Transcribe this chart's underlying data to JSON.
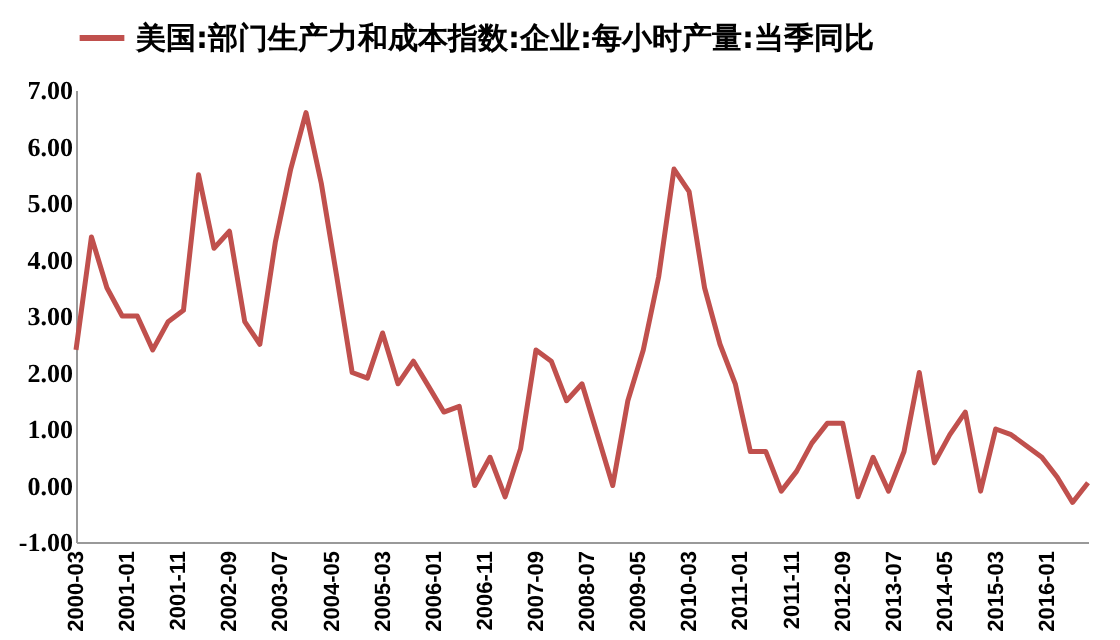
{
  "chart_data": {
    "type": "line",
    "legend": "top",
    "marker": "none",
    "line_style": "solid",
    "grid": false,
    "x": [
      "2000-03",
      "2000-06",
      "2000-09",
      "2000-12",
      "2001-03",
      "2001-06",
      "2001-09",
      "2001-12",
      "2002-03",
      "2002-06",
      "2002-09",
      "2002-12",
      "2003-03",
      "2003-06",
      "2003-09",
      "2003-12",
      "2004-03",
      "2004-06",
      "2004-09",
      "2004-12",
      "2005-03",
      "2005-06",
      "2005-09",
      "2005-12",
      "2006-03",
      "2006-06",
      "2006-09",
      "2006-12",
      "2007-03",
      "2007-06",
      "2007-09",
      "2007-12",
      "2008-03",
      "2008-06",
      "2008-09",
      "2008-12",
      "2009-03",
      "2009-06",
      "2009-09",
      "2009-12",
      "2010-03",
      "2010-06",
      "2010-09",
      "2010-12",
      "2011-03",
      "2011-06",
      "2011-09",
      "2011-12",
      "2012-03",
      "2012-06",
      "2012-09",
      "2012-12",
      "2013-03",
      "2013-06",
      "2013-09",
      "2013-12",
      "2014-03",
      "2014-06",
      "2014-09",
      "2014-12",
      "2015-03",
      "2015-06",
      "2015-09",
      "2015-12",
      "2016-03",
      "2016-06",
      "2016-09"
    ],
    "series": [
      {
        "name": "美国:部门生产力和成本指数:企业:每小时产量:当季同比",
        "color": "#c0504d",
        "values": [
          2.4,
          4.4,
          3.5,
          3.0,
          3.0,
          2.4,
          2.9,
          3.1,
          5.5,
          4.2,
          4.5,
          2.9,
          2.5,
          4.3,
          5.6,
          6.6,
          5.35,
          3.7,
          2.0,
          1.9,
          2.7,
          1.8,
          2.2,
          1.75,
          1.3,
          1.4,
          0.0,
          0.5,
          -0.2,
          0.65,
          2.4,
          2.2,
          1.5,
          1.8,
          0.9,
          0.0,
          1.5,
          2.4,
          3.7,
          5.6,
          5.2,
          3.5,
          2.5,
          1.8,
          0.6,
          0.6,
          -0.1,
          0.25,
          0.75,
          1.1,
          1.1,
          -0.2,
          0.5,
          -0.1,
          0.6,
          2.0,
          0.4,
          0.9,
          1.3,
          -0.1,
          1.0,
          0.9,
          0.7,
          0.5,
          0.15,
          -0.3,
          0.05
        ]
      }
    ],
    "xlim": [
      "2000-03",
      "2016-09"
    ],
    "xticks": [
      "2000-03",
      "2001-01",
      "2001-11",
      "2002-09",
      "2003-07",
      "2004-05",
      "2005-03",
      "2006-01",
      "2006-11",
      "2007-09",
      "2008-07",
      "2009-05",
      "2010-03",
      "2011-01",
      "2011-11",
      "2012-09",
      "2013-07",
      "2014-05",
      "2015-03",
      "2016-01"
    ],
    "ylim": [
      -1,
      7
    ],
    "yticks": [
      {
        "value": -1,
        "label": "-1.00"
      },
      {
        "value": 0,
        "label": "0.00"
      },
      {
        "value": 1,
        "label": "1.00"
      },
      {
        "value": 2,
        "label": "2.00"
      },
      {
        "value": 3,
        "label": "3.00"
      },
      {
        "value": 4,
        "label": "4.00"
      },
      {
        "value": 5,
        "label": "5.00"
      },
      {
        "value": 6,
        "label": "6.00"
      },
      {
        "value": 7,
        "label": "7.00"
      }
    ]
  }
}
